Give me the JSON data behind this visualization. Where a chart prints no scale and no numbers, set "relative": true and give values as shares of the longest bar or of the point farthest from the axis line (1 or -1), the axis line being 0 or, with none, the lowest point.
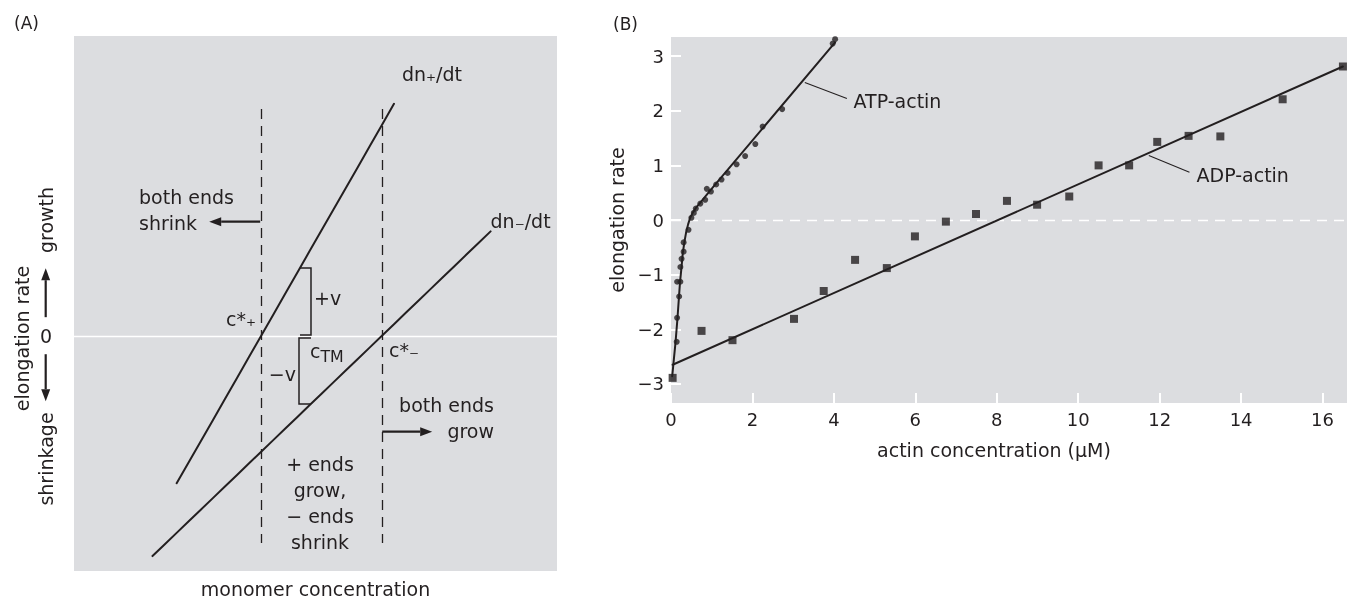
{
  "chart_data": [
    {
      "type": "line",
      "title": "(A)",
      "xlabel": "monomer concentration",
      "ylabel": "elongation rate",
      "relative": true,
      "marker": "none",
      "line_style": "solid",
      "categories": [
        null,
        null,
        null,
        null,
        null,
        null,
        null,
        null,
        null,
        null,
        null,
        null,
        null,
        null,
        null,
        null,
        null,
        null,
        null,
        null,
        null,
        null,
        null,
        null,
        null,
        null,
        null,
        null,
        null,
        null,
        null,
        null,
        null,
        null,
        null,
        null,
        null,
        null,
        null,
        null
      ],
      "series": [
        {
          "name": "dn₊/dt",
          "color": "#231f20",
          "values": [
            null,
            null,
            null,
            null,
            null,
            null,
            null,
            null,
            -0.636,
            -0.545,
            -0.455,
            -0.364,
            -0.273,
            -0.182,
            -0.091,
            0,
            0.091,
            0.182,
            0.273,
            0.364,
            0.455,
            0.545,
            0.636,
            0.727,
            0.818,
            0.909,
            1,
            null,
            null,
            null,
            null,
            null,
            null,
            null,
            null,
            null,
            null,
            null,
            null,
            null
          ]
        },
        {
          "name": "dn₋/dt",
          "color": "#231f20",
          "values": [
            null,
            null,
            null,
            null,
            null,
            null,
            -0.95,
            -0.9,
            -0.85,
            -0.8,
            -0.75,
            -0.7,
            -0.65,
            -0.6,
            -0.55,
            -0.5,
            -0.45,
            -0.4,
            -0.35,
            -0.3,
            -0.25,
            -0.2,
            -0.15,
            -0.1,
            -0.05,
            0,
            0.05,
            0.1,
            0.15,
            0.2,
            0.25,
            0.3,
            0.35,
            0.4,
            0.45,
            null,
            null,
            null,
            null,
            null
          ]
        }
      ],
      "ref_lines": [
        {
          "axis": "y",
          "value": 0,
          "line_style": "solid",
          "color": "#ffffff"
        }
      ],
      "annotations": [
        "growth",
        "0",
        "shrinkage",
        "both ends shrink",
        "both ends grow",
        "+ ends grow, − ends shrink",
        "+v",
        "−v",
        "c$_{TM}$",
        "c*₊",
        "c*₋"
      ]
    },
    {
      "type": "scatter",
      "title": "(B)",
      "xlabel": "actin concentration (μM)",
      "ylabel": "elongation rate",
      "xlim": [
        0,
        16.6
      ],
      "xticks": [
        0,
        2,
        4,
        6,
        8,
        10,
        12,
        14,
        16
      ],
      "ylim": [
        -3.35,
        3.35
      ],
      "yticks": [
        {
          "value": -3,
          "label": "−3"
        },
        {
          "value": -2,
          "label": "−2"
        },
        {
          "value": -1,
          "label": "−1"
        },
        0,
        1,
        2,
        3
      ],
      "series": [
        {
          "marker": "circle",
          "color": "#231f20",
          "x": [
            0.14,
            0.15,
            0.2,
            0.15,
            0.23,
            0.23,
            0.26,
            0.31,
            0.31,
            0.43,
            0.5,
            0.56,
            0.61,
            0.72,
            0.84,
            0.88,
            0.98,
            1.11,
            1.24,
            1.39,
            1.61,
            1.82,
            2.07,
            2.25,
            2.73,
            3.97,
            4.03
          ],
          "values": [
            -2.23,
            -1.79,
            -1.4,
            -1.13,
            -1.13,
            -0.86,
            -0.71,
            -0.58,
            -0.41,
            -0.18,
            0.04,
            0.13,
            0.21,
            0.3,
            0.37,
            0.57,
            0.52,
            0.65,
            0.74,
            0.86,
            1.02,
            1.17,
            1.39,
            1.71,
            2.03,
            3.23,
            3.31
          ]
        },
        {
          "type": "line",
          "name": "ATP-actin",
          "marker": "none",
          "color": "#231f20",
          "x": [
            0.03,
            0.07,
            0.11,
            0.16,
            0.22,
            0.26,
            0.29,
            0.33,
            0.37,
            0.42,
            0.47,
            0.54,
            0.61,
            0.7,
            0.82,
            0.95,
            1.11,
            4.03
          ],
          "values": [
            -2.86,
            -2.55,
            -2.25,
            -1.79,
            -1.15,
            -0.85,
            -0.6,
            -0.4,
            -0.23,
            -0.08,
            0.04,
            0.14,
            0.22,
            0.3,
            0.41,
            0.53,
            0.67,
            3.25
          ]
        },
        {
          "marker": "square",
          "color": "#231f20",
          "x": [
            0.04,
            0.75,
            1.51,
            3.02,
            3.75,
            4.52,
            5.3,
            5.99,
            6.75,
            7.49,
            8.25,
            8.99,
            9.78,
            10.5,
            11.25,
            11.94,
            12.71,
            13.49,
            15.02,
            16.5
          ],
          "values": [
            -2.89,
            -2.03,
            -2.2,
            -1.81,
            -1.3,
            -0.73,
            -0.88,
            -0.3,
            -0.03,
            0.11,
            0.35,
            0.28,
            0.43,
            1,
            1,
            1.43,
            1.54,
            1.53,
            2.21,
            2.81
          ]
        },
        {
          "type": "line",
          "name": "ADP-actin",
          "marker": "none",
          "color": "#231f20",
          "x": [
            0.04,
            16.5
          ],
          "values": [
            -2.65,
            2.81
          ]
        }
      ],
      "ref_lines": [
        {
          "axis": "y",
          "value": 0,
          "line_style": "dashed",
          "color": "#ffffff"
        }
      ]
    }
  ]
}
